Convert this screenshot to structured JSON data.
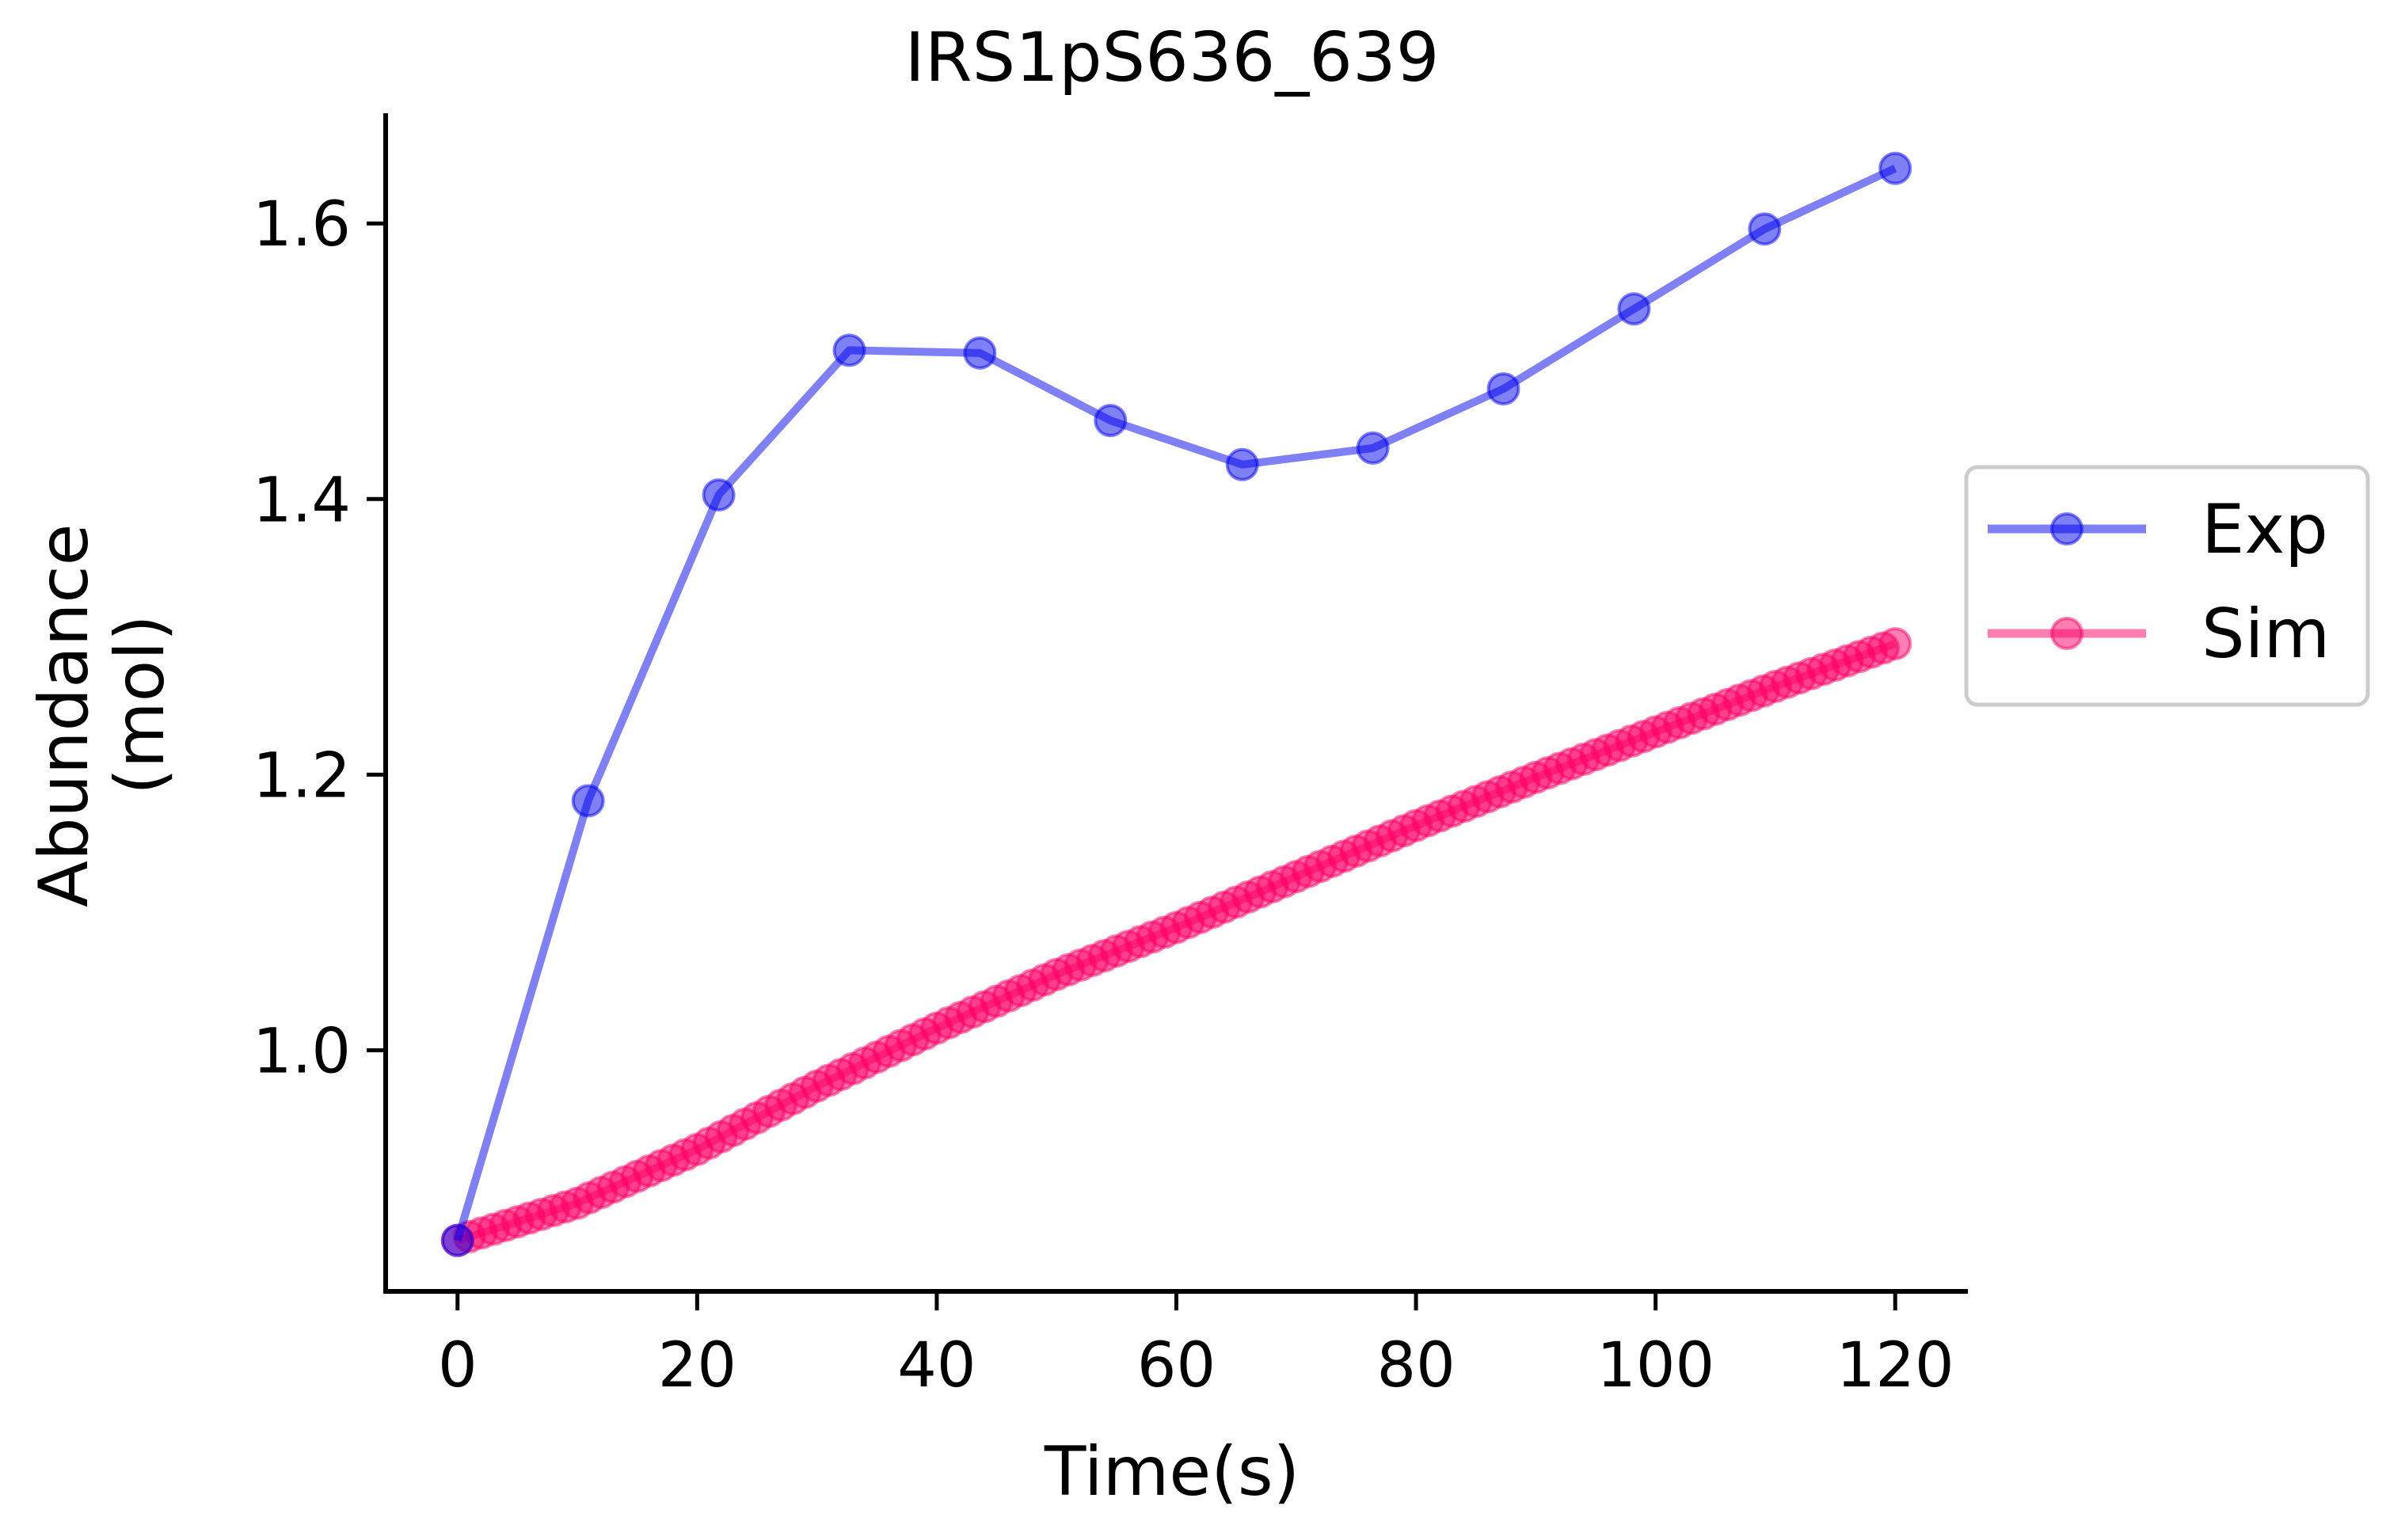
{
  "chart_data": {
    "type": "line",
    "title": "IRS1pS636_639",
    "xlabel": "Time(s)",
    "ylabel_lines": [
      "Abundance",
      "(mol)"
    ],
    "xlim": [
      -6,
      126
    ],
    "ylim": [
      0.825,
      1.68
    ],
    "xticks": [
      0,
      20,
      40,
      60,
      80,
      100,
      120
    ],
    "xtick_labels": [
      "0",
      "20",
      "40",
      "60",
      "80",
      "100",
      "120"
    ],
    "yticks": [
      1.0,
      1.2,
      1.4,
      1.6
    ],
    "ytick_labels": [
      "1.0",
      "1.2",
      "1.4",
      "1.6"
    ],
    "grid": false,
    "legend_position": "right, outside plot",
    "series": [
      {
        "name": "Exp",
        "color": "#0000ee",
        "x": [
          0,
          10.9,
          21.8,
          32.7,
          43.6,
          54.5,
          65.5,
          76.4,
          87.3,
          98.2,
          109.1,
          120
        ],
        "y": [
          0.862,
          1.181,
          1.403,
          1.508,
          1.506,
          1.457,
          1.425,
          1.437,
          1.48,
          1.538,
          1.596,
          1.64
        ]
      },
      {
        "name": "Sim",
        "color": "#ff0066",
        "x_start": 0,
        "x_end": 120,
        "n_points": 121,
        "x_key": [
          0,
          10,
          20,
          30,
          40,
          50,
          60,
          70,
          80,
          90,
          100,
          110,
          120
        ],
        "y_key": [
          0.862,
          0.889,
          0.928,
          0.974,
          1.016,
          1.055,
          1.089,
          1.126,
          1.163,
          1.198,
          1.231,
          1.264,
          1.295
        ]
      }
    ]
  }
}
